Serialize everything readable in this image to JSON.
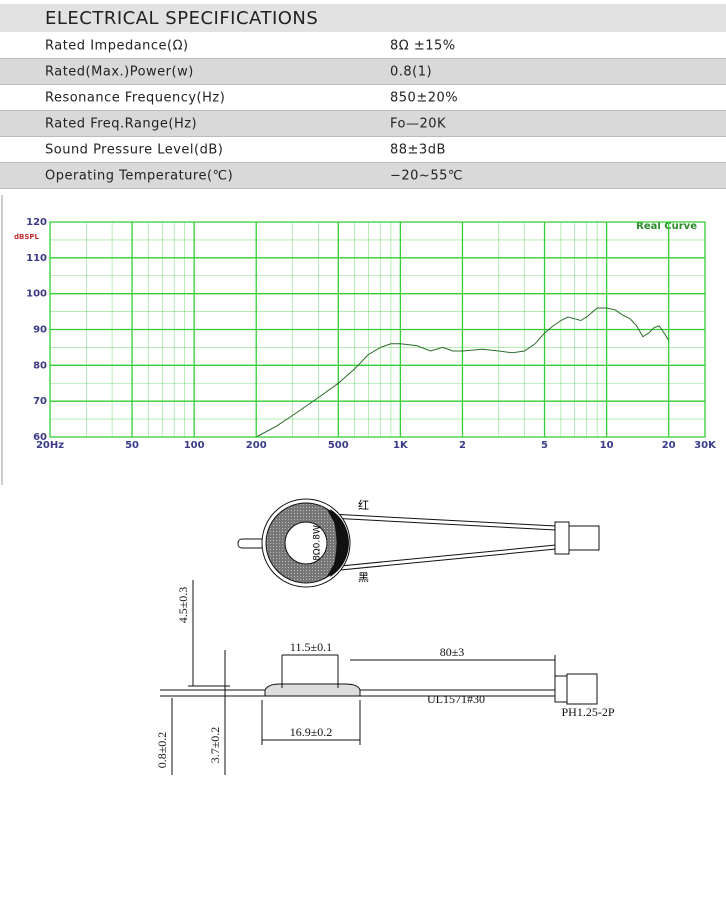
{
  "spec": {
    "title": "ELECTRICAL SPECIFICATIONS",
    "rows": [
      [
        "Rated Impedance(Ω)",
        "8Ω ±15%"
      ],
      [
        "Rated(Max.)Power(w)",
        "0.8(1)"
      ],
      [
        "Resonance Frequency(Hz)",
        "850±20%"
      ],
      [
        "Rated Freq.Range(Hz)",
        "Fo—20K"
      ],
      [
        "Sound Pressure Level(dB)",
        "88±3dB"
      ],
      [
        "Operating Temperature(℃)",
        "−20~55℃"
      ]
    ]
  },
  "chart_data": {
    "type": "line",
    "annotation": "Real Curve",
    "y_label": "dBSPL",
    "x_log": true,
    "grid": true,
    "grid_color": "#33cc33",
    "xlim": [
      20,
      30000
    ],
    "ylim": [
      60,
      120
    ],
    "xticks": [
      {
        "value": 20,
        "label": "20Hz"
      },
      50,
      100,
      200,
      500,
      {
        "value": 1000,
        "label": "1K"
      },
      {
        "value": 2000,
        "label": "2"
      },
      {
        "value": 5000,
        "label": "5"
      },
      {
        "value": 10000,
        "label": "10"
      },
      {
        "value": 20000,
        "label": "20"
      },
      {
        "value": 30000,
        "label": "30K"
      }
    ],
    "yticks": [
      60,
      70,
      80,
      90,
      100,
      110,
      120
    ],
    "xminor": [
      30,
      40,
      60,
      70,
      80,
      90,
      300,
      400,
      600,
      700,
      800,
      900,
      3000,
      4000,
      6000,
      7000,
      8000,
      9000
    ],
    "yminor": [
      65,
      75,
      85,
      95,
      105,
      115
    ],
    "x": [
      200,
      250,
      300,
      400,
      500,
      600,
      700,
      800,
      900,
      1000,
      1200,
      1400,
      1600,
      1800,
      2000,
      2500,
      3000,
      3500,
      4000,
      4500,
      5000,
      5500,
      6000,
      6500,
      7000,
      7500,
      8000,
      9000,
      10000,
      11000,
      12000,
      13000,
      14000,
      15000,
      16000,
      17000,
      18000,
      19000,
      20000
    ],
    "series": [
      {
        "name": "Real Curve",
        "color": "#2a6a2a",
        "values": [
          60,
          63,
          66,
          71,
          75,
          79,
          83,
          85,
          86,
          86,
          85.5,
          84,
          85,
          84,
          84,
          84.5,
          84,
          83.5,
          84,
          86,
          89,
          91,
          92.5,
          93.5,
          93,
          92.5,
          93.5,
          96,
          96,
          95.5,
          94,
          93,
          91,
          88,
          89,
          90.5,
          91,
          89,
          87
        ]
      }
    ]
  },
  "drawing": {
    "red": "红",
    "black": "黑",
    "rating": "8Ω0.8W",
    "height_dim": "4.5±0.3",
    "inner_dim": "11.5±0.1",
    "wire_len": "80±3",
    "wire": "UL1571#30",
    "connector": "PH1.25-2P",
    "outer_dim": "16.9±0.2",
    "thick_dim": "0.8±0.2",
    "body_dim": "3.7±0.2"
  }
}
